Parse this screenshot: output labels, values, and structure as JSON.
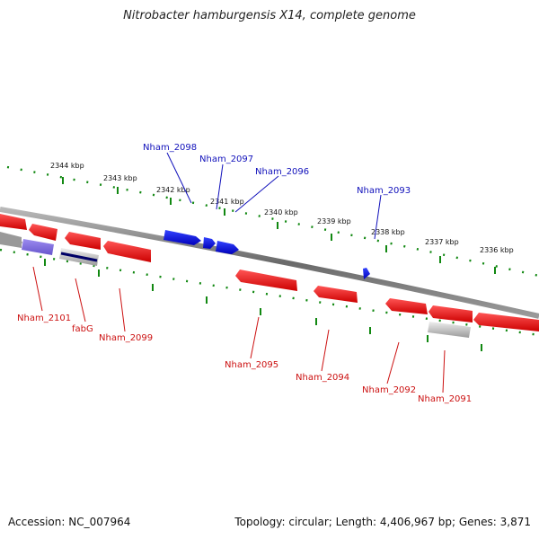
{
  "title": "Nitrobacter hamburgensis X14, complete genome",
  "footer": {
    "accession": "Accession: NC_007964",
    "summary": "Topology: circular; Length: 4,406,967 bp; Genes: 3,871"
  },
  "colors": {
    "forward_gene": "#1010dd",
    "reverse_gene": "#ee1111",
    "pseudo_gene": "#b0b0b0",
    "axis_text": "#111111",
    "tick": "#118811",
    "forward_label": "#1111bb",
    "reverse_label": "#cc1111"
  },
  "scale_labels": [
    "2344 kbp",
    "2343 kbp",
    "2342 kbp",
    "2341 kbp",
    "2340 kbp",
    "2339 kbp",
    "2338 kbp",
    "2337 kbp",
    "2336 kbp"
  ],
  "forward_labels": [
    "Nham_2098",
    "Nham_2097",
    "Nham_2096",
    "Nham_2093"
  ],
  "reverse_labels": [
    "Nham_2101",
    "fabG",
    "Nham_2099",
    "Nham_2095",
    "Nham_2094",
    "Nham_2092",
    "Nham_2091"
  ]
}
